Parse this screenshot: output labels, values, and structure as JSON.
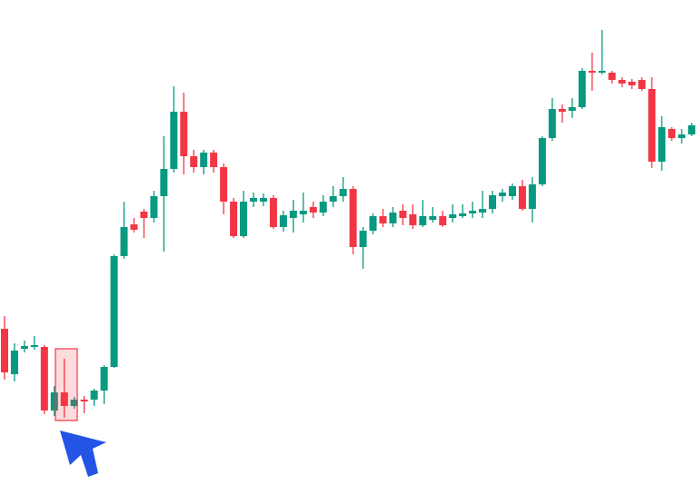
{
  "chart_data": {
    "type": "candlestick",
    "open": [
      183,
      133,
      161,
      163,
      163,
      93,
      113,
      98,
      105,
      105,
      115,
      141,
      263,
      298,
      312,
      305,
      329,
      359,
      422,
      373,
      361,
      377,
      361,
      323,
      285,
      323,
      323,
      327,
      295,
      305,
      309,
      317,
      311,
      323,
      329,
      337,
      273,
      291,
      307,
      299,
      313,
      309,
      297,
      303,
      307,
      305,
      307,
      310,
      311,
      315,
      329,
      329,
      340,
      315,
      342,
      393,
      425,
      423,
      427,
      467,
      465,
      465,
      457,
      455,
      457,
      447,
      367,
      403,
      393,
      397
    ],
    "high": [
      197,
      167,
      170,
      175,
      165,
      120,
      150,
      108,
      109,
      117,
      143,
      265,
      323,
      305,
      315,
      335,
      395,
      450,
      443,
      380,
      380,
      380,
      365,
      327,
      335,
      333,
      332,
      330,
      313,
      325,
      333,
      323,
      330,
      340,
      350,
      340,
      295,
      310,
      315,
      317,
      320,
      320,
      325,
      317,
      313,
      320,
      320,
      323,
      335,
      335,
      337,
      343,
      347,
      350,
      395,
      437,
      430,
      437,
      470,
      487,
      512,
      467,
      460,
      458,
      460,
      460,
      417,
      405,
      403,
      410
    ],
    "low": [
      127,
      125,
      157,
      160,
      89,
      87,
      85,
      95,
      90,
      98,
      100,
      140,
      260,
      289,
      283,
      300,
      268,
      355,
      353,
      355,
      353,
      355,
      309,
      283,
      283,
      317,
      318,
      293,
      290,
      289,
      300,
      305,
      307,
      317,
      323,
      265,
      249,
      287,
      295,
      295,
      297,
      293,
      295,
      300,
      295,
      300,
      305,
      305,
      305,
      310,
      323,
      325,
      313,
      300,
      340,
      390,
      410,
      415,
      425,
      445,
      463,
      453,
      449,
      447,
      445,
      360,
      357,
      390,
      387,
      395
    ],
    "close": [
      135,
      159,
      164,
      165,
      93,
      113,
      98,
      105,
      103,
      115,
      141,
      263,
      295,
      292,
      305,
      329,
      359,
      422,
      373,
      361,
      377,
      361,
      323,
      285,
      323,
      327,
      327,
      295,
      308,
      313,
      313,
      311,
      323,
      329,
      337,
      273,
      291,
      307,
      299,
      311,
      305,
      297,
      307,
      307,
      297,
      309,
      310,
      313,
      315,
      330,
      333,
      340,
      315,
      342,
      393,
      425,
      422,
      427,
      467,
      465,
      467,
      457,
      453,
      451,
      447,
      367,
      405,
      393,
      397,
      407
    ],
    "ylim": [
      0,
      545
    ],
    "up_color": "#089981",
    "down_color": "#f23645"
  }
}
